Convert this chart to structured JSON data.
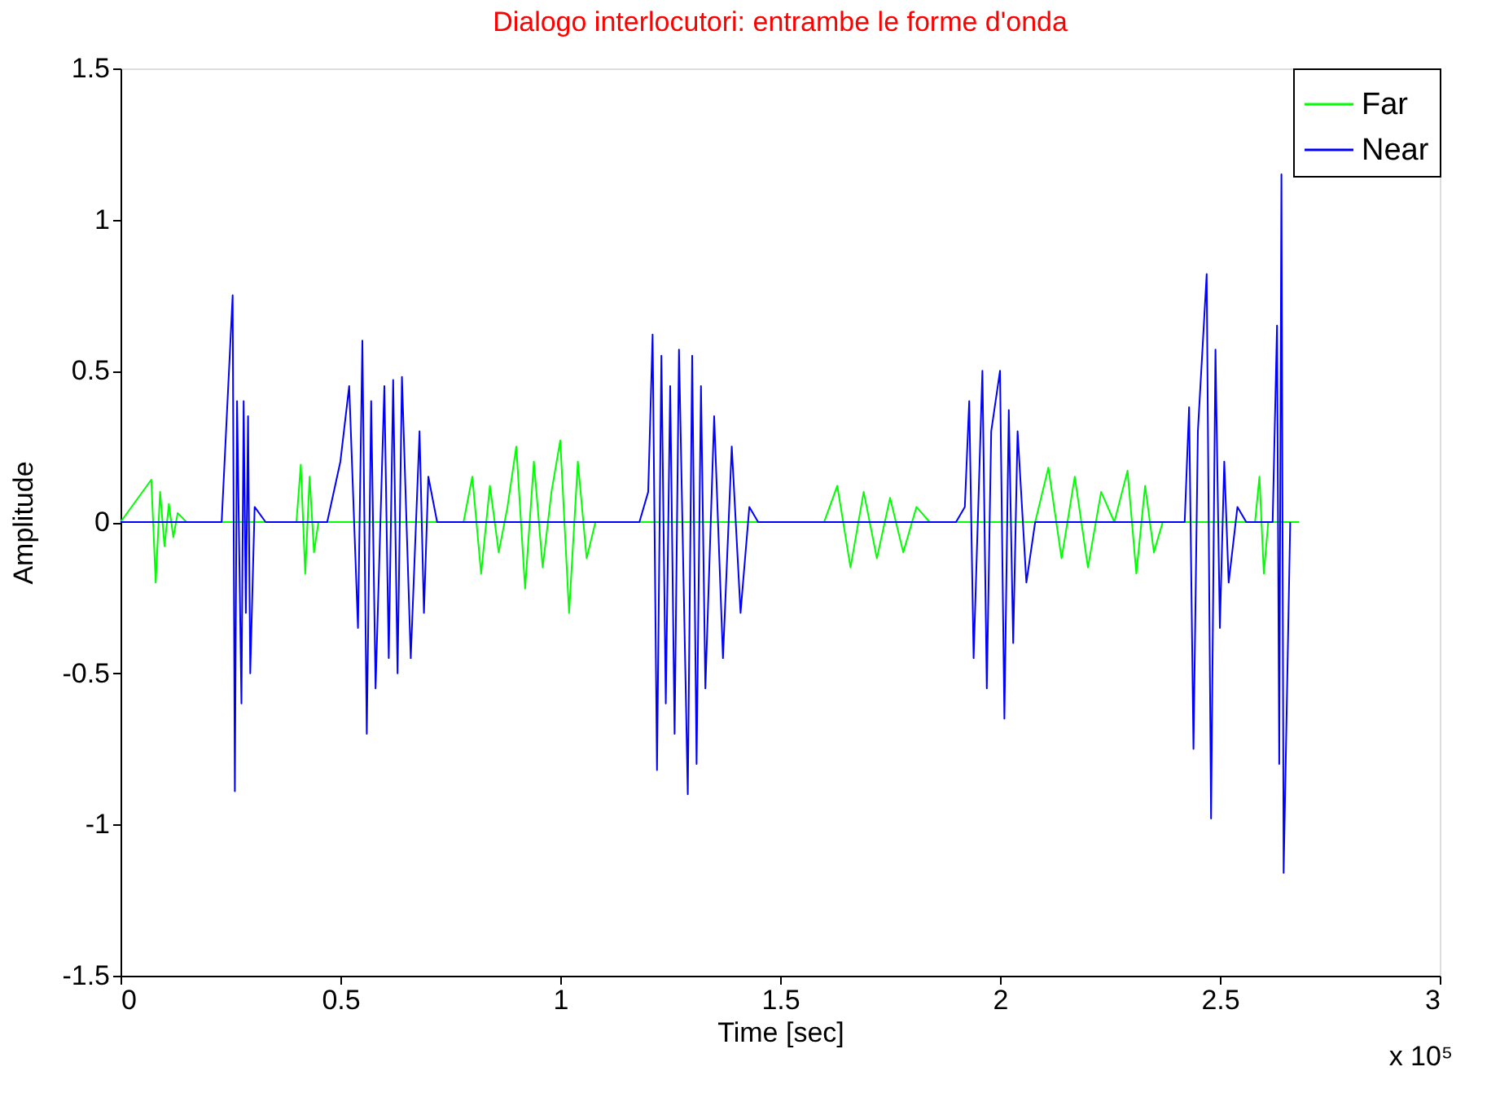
{
  "chart_data": {
    "type": "line",
    "title": "Dialogo interlocutori: entrambe le forme d'onda",
    "xlabel": "Time [sec]",
    "ylabel": "Amplitude",
    "xlim": [
      0,
      3
    ],
    "ylim": [
      -1.5,
      1.5
    ],
    "xticks": [
      0,
      0.5,
      1,
      1.5,
      2,
      2.5,
      3
    ],
    "yticks": [
      -1.5,
      -1,
      -0.5,
      0,
      0.5,
      1,
      1.5
    ],
    "annotations": [
      "x 10⁵"
    ],
    "legend": "top right",
    "grid": false,
    "marker": "none",
    "line_style": "solid",
    "series": [
      {
        "name": "Far",
        "color": "#00ff00",
        "x": [
          0,
          0.07,
          0.08,
          0.09,
          0.1,
          0.11,
          0.12,
          0.13,
          0.15,
          0.4,
          0.41,
          0.42,
          0.43,
          0.44,
          0.45,
          0.78,
          0.8,
          0.82,
          0.84,
          0.86,
          0.88,
          0.9,
          0.92,
          0.94,
          0.96,
          0.98,
          1.0,
          1.02,
          1.04,
          1.06,
          1.08,
          1.6,
          1.63,
          1.66,
          1.69,
          1.72,
          1.75,
          1.78,
          1.81,
          1.84,
          2.08,
          2.11,
          2.14,
          2.17,
          2.2,
          2.23,
          2.26,
          2.29,
          2.31,
          2.33,
          2.35,
          2.37,
          2.58,
          2.59,
          2.6,
          2.61,
          2.68
        ],
        "values": [
          0,
          0.14,
          -0.2,
          0.1,
          -0.08,
          0.06,
          -0.05,
          0.03,
          0,
          0,
          0.19,
          -0.17,
          0.15,
          -0.1,
          0,
          0,
          0.15,
          -0.17,
          0.12,
          -0.1,
          0.05,
          0.25,
          -0.22,
          0.2,
          -0.15,
          0.1,
          0.27,
          -0.3,
          0.2,
          -0.12,
          0,
          0,
          0.12,
          -0.15,
          0.1,
          -0.12,
          0.08,
          -0.1,
          0.05,
          0,
          0,
          0.18,
          -0.12,
          0.15,
          -0.15,
          0.1,
          0,
          0.17,
          -0.17,
          0.12,
          -0.1,
          0,
          0,
          0.15,
          -0.17,
          0,
          0
        ]
      },
      {
        "name": "Near",
        "color": "#0000ff",
        "x": [
          0,
          0.23,
          0.255,
          0.26,
          0.265,
          0.275,
          0.28,
          0.285,
          0.29,
          0.295,
          0.305,
          0.33,
          0.47,
          0.5,
          0.52,
          0.54,
          0.55,
          0.56,
          0.57,
          0.58,
          0.6,
          0.61,
          0.62,
          0.63,
          0.64,
          0.66,
          0.68,
          0.69,
          0.7,
          0.72,
          1.18,
          1.2,
          1.21,
          1.22,
          1.23,
          1.24,
          1.25,
          1.26,
          1.27,
          1.29,
          1.3,
          1.31,
          1.32,
          1.33,
          1.35,
          1.37,
          1.39,
          1.41,
          1.43,
          1.45,
          1.9,
          1.92,
          1.93,
          1.94,
          1.96,
          1.97,
          1.98,
          2.0,
          2.01,
          2.02,
          2.03,
          2.04,
          2.06,
          2.08,
          2.42,
          2.43,
          2.44,
          2.45,
          2.47,
          2.48,
          2.49,
          2.5,
          2.51,
          2.52,
          2.54,
          2.56,
          2.62,
          2.63,
          2.635,
          2.64,
          2.645,
          2.66
        ],
        "values": [
          0,
          0,
          0.75,
          -0.89,
          0.4,
          -0.6,
          0.4,
          -0.3,
          0.35,
          -0.5,
          0.05,
          0,
          0,
          0.2,
          0.45,
          -0.35,
          0.6,
          -0.7,
          0.4,
          -0.55,
          0.45,
          -0.45,
          0.47,
          -0.5,
          0.48,
          -0.45,
          0.3,
          -0.3,
          0.15,
          0,
          0,
          0.1,
          0.62,
          -0.82,
          0.55,
          -0.6,
          0.45,
          -0.7,
          0.57,
          -0.9,
          0.55,
          -0.8,
          0.45,
          -0.55,
          0.35,
          -0.45,
          0.25,
          -0.3,
          0.05,
          0,
          0,
          0.05,
          0.4,
          -0.45,
          0.5,
          -0.55,
          0.3,
          0.5,
          -0.65,
          0.37,
          -0.4,
          0.3,
          -0.2,
          0,
          0,
          0.38,
          -0.75,
          0.3,
          0.82,
          -0.98,
          0.57,
          -0.35,
          0.2,
          -0.2,
          0.05,
          0,
          0,
          0.65,
          -0.8,
          1.15,
          -1.16,
          0
        ]
      }
    ]
  }
}
